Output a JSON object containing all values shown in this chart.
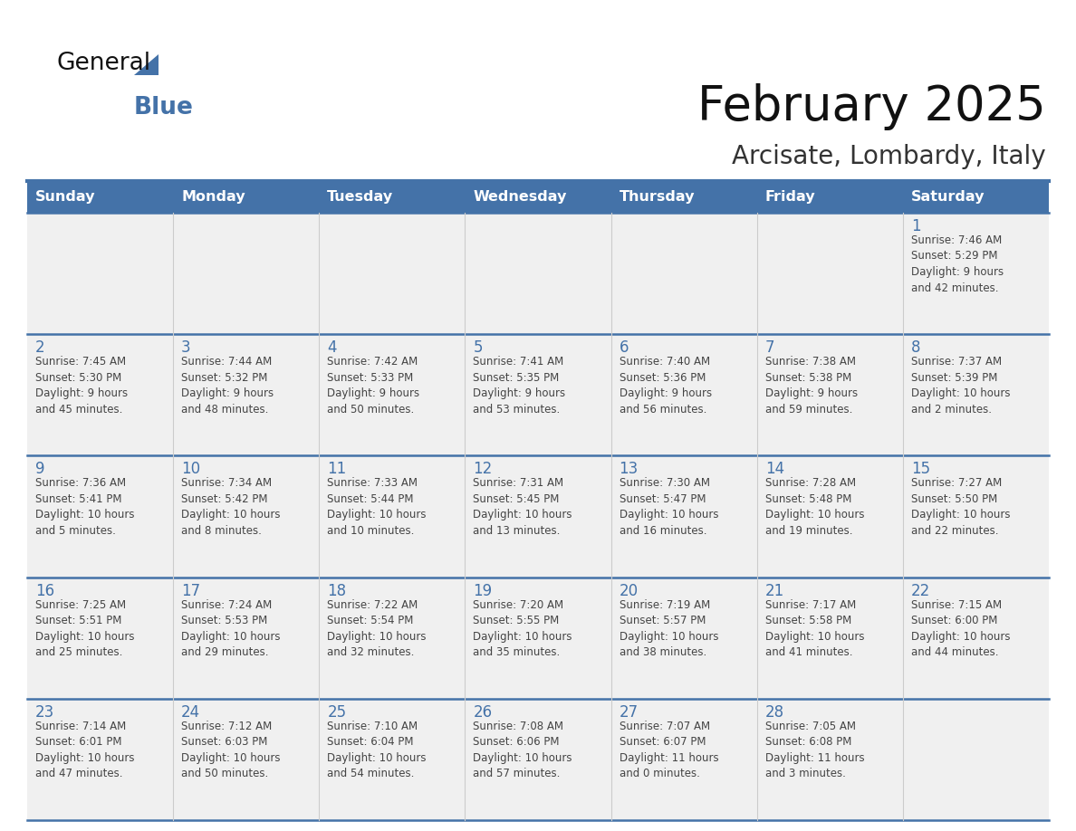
{
  "title": "February 2025",
  "subtitle": "Arcisate, Lombardy, Italy",
  "header_bg": "#4472a8",
  "header_text_color": "#ffffff",
  "cell_bg": "#f0f0f0",
  "border_color": "#4472a8",
  "day_number_color": "#4472a8",
  "text_color": "#444444",
  "separator_color": "#4472a8",
  "days_of_week": [
    "Sunday",
    "Monday",
    "Tuesday",
    "Wednesday",
    "Thursday",
    "Friday",
    "Saturday"
  ],
  "weeks": [
    [
      {
        "day": null,
        "info": null
      },
      {
        "day": null,
        "info": null
      },
      {
        "day": null,
        "info": null
      },
      {
        "day": null,
        "info": null
      },
      {
        "day": null,
        "info": null
      },
      {
        "day": null,
        "info": null
      },
      {
        "day": "1",
        "info": "Sunrise: 7:46 AM\nSunset: 5:29 PM\nDaylight: 9 hours\nand 42 minutes."
      }
    ],
    [
      {
        "day": "2",
        "info": "Sunrise: 7:45 AM\nSunset: 5:30 PM\nDaylight: 9 hours\nand 45 minutes."
      },
      {
        "day": "3",
        "info": "Sunrise: 7:44 AM\nSunset: 5:32 PM\nDaylight: 9 hours\nand 48 minutes."
      },
      {
        "day": "4",
        "info": "Sunrise: 7:42 AM\nSunset: 5:33 PM\nDaylight: 9 hours\nand 50 minutes."
      },
      {
        "day": "5",
        "info": "Sunrise: 7:41 AM\nSunset: 5:35 PM\nDaylight: 9 hours\nand 53 minutes."
      },
      {
        "day": "6",
        "info": "Sunrise: 7:40 AM\nSunset: 5:36 PM\nDaylight: 9 hours\nand 56 minutes."
      },
      {
        "day": "7",
        "info": "Sunrise: 7:38 AM\nSunset: 5:38 PM\nDaylight: 9 hours\nand 59 minutes."
      },
      {
        "day": "8",
        "info": "Sunrise: 7:37 AM\nSunset: 5:39 PM\nDaylight: 10 hours\nand 2 minutes."
      }
    ],
    [
      {
        "day": "9",
        "info": "Sunrise: 7:36 AM\nSunset: 5:41 PM\nDaylight: 10 hours\nand 5 minutes."
      },
      {
        "day": "10",
        "info": "Sunrise: 7:34 AM\nSunset: 5:42 PM\nDaylight: 10 hours\nand 8 minutes."
      },
      {
        "day": "11",
        "info": "Sunrise: 7:33 AM\nSunset: 5:44 PM\nDaylight: 10 hours\nand 10 minutes."
      },
      {
        "day": "12",
        "info": "Sunrise: 7:31 AM\nSunset: 5:45 PM\nDaylight: 10 hours\nand 13 minutes."
      },
      {
        "day": "13",
        "info": "Sunrise: 7:30 AM\nSunset: 5:47 PM\nDaylight: 10 hours\nand 16 minutes."
      },
      {
        "day": "14",
        "info": "Sunrise: 7:28 AM\nSunset: 5:48 PM\nDaylight: 10 hours\nand 19 minutes."
      },
      {
        "day": "15",
        "info": "Sunrise: 7:27 AM\nSunset: 5:50 PM\nDaylight: 10 hours\nand 22 minutes."
      }
    ],
    [
      {
        "day": "16",
        "info": "Sunrise: 7:25 AM\nSunset: 5:51 PM\nDaylight: 10 hours\nand 25 minutes."
      },
      {
        "day": "17",
        "info": "Sunrise: 7:24 AM\nSunset: 5:53 PM\nDaylight: 10 hours\nand 29 minutes."
      },
      {
        "day": "18",
        "info": "Sunrise: 7:22 AM\nSunset: 5:54 PM\nDaylight: 10 hours\nand 32 minutes."
      },
      {
        "day": "19",
        "info": "Sunrise: 7:20 AM\nSunset: 5:55 PM\nDaylight: 10 hours\nand 35 minutes."
      },
      {
        "day": "20",
        "info": "Sunrise: 7:19 AM\nSunset: 5:57 PM\nDaylight: 10 hours\nand 38 minutes."
      },
      {
        "day": "21",
        "info": "Sunrise: 7:17 AM\nSunset: 5:58 PM\nDaylight: 10 hours\nand 41 minutes."
      },
      {
        "day": "22",
        "info": "Sunrise: 7:15 AM\nSunset: 6:00 PM\nDaylight: 10 hours\nand 44 minutes."
      }
    ],
    [
      {
        "day": "23",
        "info": "Sunrise: 7:14 AM\nSunset: 6:01 PM\nDaylight: 10 hours\nand 47 minutes."
      },
      {
        "day": "24",
        "info": "Sunrise: 7:12 AM\nSunset: 6:03 PM\nDaylight: 10 hours\nand 50 minutes."
      },
      {
        "day": "25",
        "info": "Sunrise: 7:10 AM\nSunset: 6:04 PM\nDaylight: 10 hours\nand 54 minutes."
      },
      {
        "day": "26",
        "info": "Sunrise: 7:08 AM\nSunset: 6:06 PM\nDaylight: 10 hours\nand 57 minutes."
      },
      {
        "day": "27",
        "info": "Sunrise: 7:07 AM\nSunset: 6:07 PM\nDaylight: 11 hours\nand 0 minutes."
      },
      {
        "day": "28",
        "info": "Sunrise: 7:05 AM\nSunset: 6:08 PM\nDaylight: 11 hours\nand 3 minutes."
      },
      {
        "day": null,
        "info": null
      }
    ]
  ]
}
